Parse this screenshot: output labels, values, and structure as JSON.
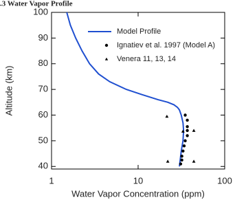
{
  "chart_data": {
    "type": "line",
    "title": ".3 Water Vapor Profile",
    "x_label": "Water Vapor Concentration (ppm)",
    "y_label": "Altitude (km)",
    "xscale": "log",
    "xlim": [
      1,
      100
    ],
    "xticks": [
      1,
      10,
      100
    ],
    "ylim": [
      39,
      100
    ],
    "yticks": [
      40,
      50,
      60,
      70,
      80,
      90,
      100
    ],
    "legend": "upper right",
    "series": [
      {
        "name": "Model Profile",
        "color": "#1f4fd0",
        "mode": "line",
        "x": [
          1.5,
          1.65,
          1.9,
          2.25,
          2.75,
          3.5,
          4.7,
          7.3,
          11,
          17,
          22,
          26,
          28.5,
          30,
          31.5,
          33,
          33.5,
          33,
          31.5,
          30.5,
          30
        ],
        "values": [
          100,
          95,
          90,
          85,
          80,
          76,
          73,
          70,
          68,
          66,
          65,
          64,
          63,
          62,
          60,
          57,
          54,
          50,
          46,
          42,
          40
        ]
      },
      {
        "name": "Ignatiev et al. 1997 (Model A)",
        "color": "#000000",
        "mode": "circle",
        "x": [
          35,
          37,
          37,
          37,
          37,
          35,
          34,
          33,
          32,
          32,
          31
        ],
        "values": [
          60,
          58,
          55.5,
          54,
          52,
          50,
          48,
          46,
          44,
          42.5,
          41
        ]
      },
      {
        "name": "Venera 11, 13, 14",
        "color": "#000000",
        "mode": "triangle",
        "x": [
          21.5,
          33,
          44,
          22,
          44
        ],
        "values": [
          59.5,
          53.7,
          54,
          42,
          42
        ]
      }
    ]
  }
}
